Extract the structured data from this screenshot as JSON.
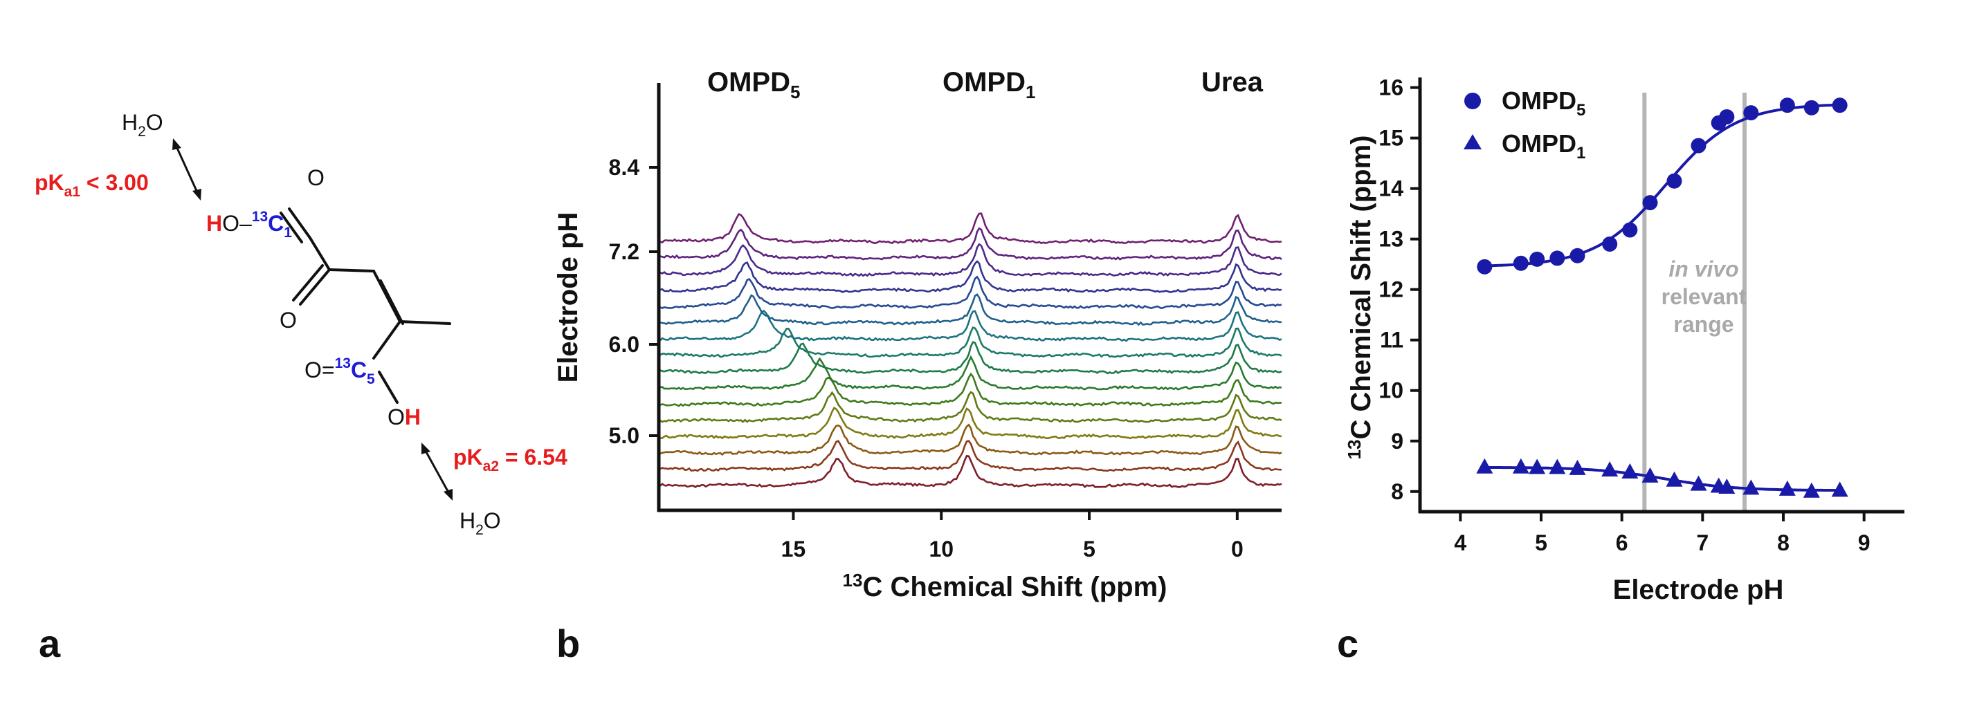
{
  "panel_a": {
    "panel_label": "a",
    "top_water": {
      "main": "H",
      "sub": "2",
      "tail": "O"
    },
    "bottom_water": {
      "main": "H",
      "sub": "2",
      "tail": "O"
    },
    "pka1": {
      "main": "pK",
      "sub": "a1",
      "tail": " < 3.00"
    },
    "pka2": {
      "main": "pK",
      "sub": "a2",
      "tail": " = 6.54"
    },
    "acid_h": "H",
    "o_label": "O",
    "ho_prefix": "O–",
    "c13_sup": "13",
    "c1_main": "C",
    "c1_sub": "1",
    "o_dbl_prefix": "O=",
    "c5_main": "C",
    "c5_sub": "5",
    "oh_o": "O",
    "oh_h": "H",
    "colors": {
      "red": "#e81c1c",
      "blue": "#1c1cd6",
      "black": "#111111"
    }
  },
  "panel_b": {
    "panel_label": "b",
    "peak_labels": {
      "ompd5": {
        "main": "OMPD",
        "sub": "5"
      },
      "ompd1": {
        "main": "OMPD",
        "sub": "1"
      },
      "urea": "Urea"
    },
    "ylabel": "Electrode pH",
    "xlabel": {
      "sup": "13",
      "main": "C Chemical Shift (ppm)"
    },
    "x_ticks": [
      "15",
      "10",
      "5",
      "0"
    ],
    "y_ticks": [
      "8.4",
      "7.2",
      "6.0",
      "5.0"
    ]
  },
  "panel_c": {
    "panel_label": "c",
    "legend": [
      {
        "main": "OMPD",
        "sub": "5",
        "marker": "circle"
      },
      {
        "main": "OMPD",
        "sub": "1",
        "marker": "triangle"
      }
    ],
    "annotation": {
      "line1": "in vivo",
      "line2": "relevant",
      "line3": "range"
    },
    "ylabel": {
      "sup": "13",
      "main": "C Chemical Shift (ppm)"
    },
    "xlabel": "Electrode pH",
    "x_ticks": [
      "4",
      "5",
      "6",
      "7",
      "8",
      "9"
    ],
    "y_ticks": [
      "8",
      "9",
      "10",
      "11",
      "12",
      "13",
      "14",
      "15",
      "16"
    ]
  },
  "chart_data": [
    {
      "type": "line",
      "title": "",
      "xlabel": "13C Chemical Shift (ppm)",
      "ylabel": "Electrode pH",
      "xlim": [
        19.5,
        -1.5
      ],
      "x_reversed": true,
      "spectra_count": 16,
      "peaks": [
        {
          "name": "OMPD5",
          "shift_ppm_by_trace": [
            13.5,
            13.5,
            13.5,
            13.6,
            13.7,
            13.8,
            14.1,
            14.7,
            15.2,
            16.0,
            16.4,
            16.5,
            16.6,
            16.7,
            16.8,
            16.8
          ]
        },
        {
          "name": "OMPD1",
          "shift_ppm_by_trace": [
            9.1,
            9.1,
            9.1,
            9.1,
            9.0,
            9.0,
            9.0,
            8.9,
            8.9,
            8.9,
            8.8,
            8.8,
            8.8,
            8.7,
            8.7,
            8.7
          ]
        },
        {
          "name": "Urea",
          "shift_ppm_by_trace": [
            0,
            0,
            0,
            0,
            0,
            0,
            0,
            0,
            0,
            0,
            0,
            0,
            0,
            0,
            0,
            0
          ]
        }
      ],
      "trace_colors": [
        "#7f1f2a",
        "#8a3a1c",
        "#8a5a14",
        "#7f7a12",
        "#5f7a14",
        "#3f7a1c",
        "#2a7a30",
        "#1f7a48",
        "#1c7a66",
        "#1c7480",
        "#1f608c",
        "#264a92",
        "#33348f",
        "#4a2a8a",
        "#5e237f",
        "#6f1f70"
      ],
      "y_ticks": [
        8.4,
        7.2,
        6.0,
        5.0
      ]
    },
    {
      "type": "scatter",
      "title": "",
      "xlabel": "Electrode pH",
      "ylabel": "13C Chemical Shift (ppm)",
      "xlim": [
        3.5,
        9.5
      ],
      "ylim": [
        7.6,
        16.2
      ],
      "series": [
        {
          "name": "OMPD5",
          "marker": "circle",
          "x": [
            4.3,
            4.75,
            4.95,
            5.2,
            5.45,
            5.85,
            6.1,
            6.35,
            6.65,
            6.95,
            7.2,
            7.3,
            7.6,
            8.05,
            8.35,
            8.7
          ],
          "y": [
            12.45,
            12.52,
            12.6,
            12.62,
            12.67,
            12.9,
            13.18,
            13.72,
            14.15,
            14.85,
            15.3,
            15.42,
            15.5,
            15.65,
            15.6,
            15.65
          ]
        },
        {
          "name": "OMPD1",
          "marker": "triangle",
          "x": [
            4.3,
            4.75,
            4.95,
            5.2,
            5.45,
            5.85,
            6.1,
            6.35,
            6.65,
            6.95,
            7.2,
            7.3,
            7.6,
            8.05,
            8.35,
            8.7
          ],
          "y": [
            8.48,
            8.48,
            8.47,
            8.47,
            8.45,
            8.42,
            8.38,
            8.3,
            8.22,
            8.14,
            8.1,
            8.08,
            8.06,
            8.04,
            8.0,
            8.02
          ]
        }
      ],
      "fit": {
        "ompd5_low": 12.45,
        "ompd5_high": 15.68,
        "ompd1_low": 8.48,
        "ompd1_high": 8.02,
        "pka": 6.54
      },
      "vertical_lines_x": [
        6.28,
        7.52
      ],
      "line_color": "#1a1aa8",
      "ref_line_color": "#b5b5b5"
    }
  ]
}
